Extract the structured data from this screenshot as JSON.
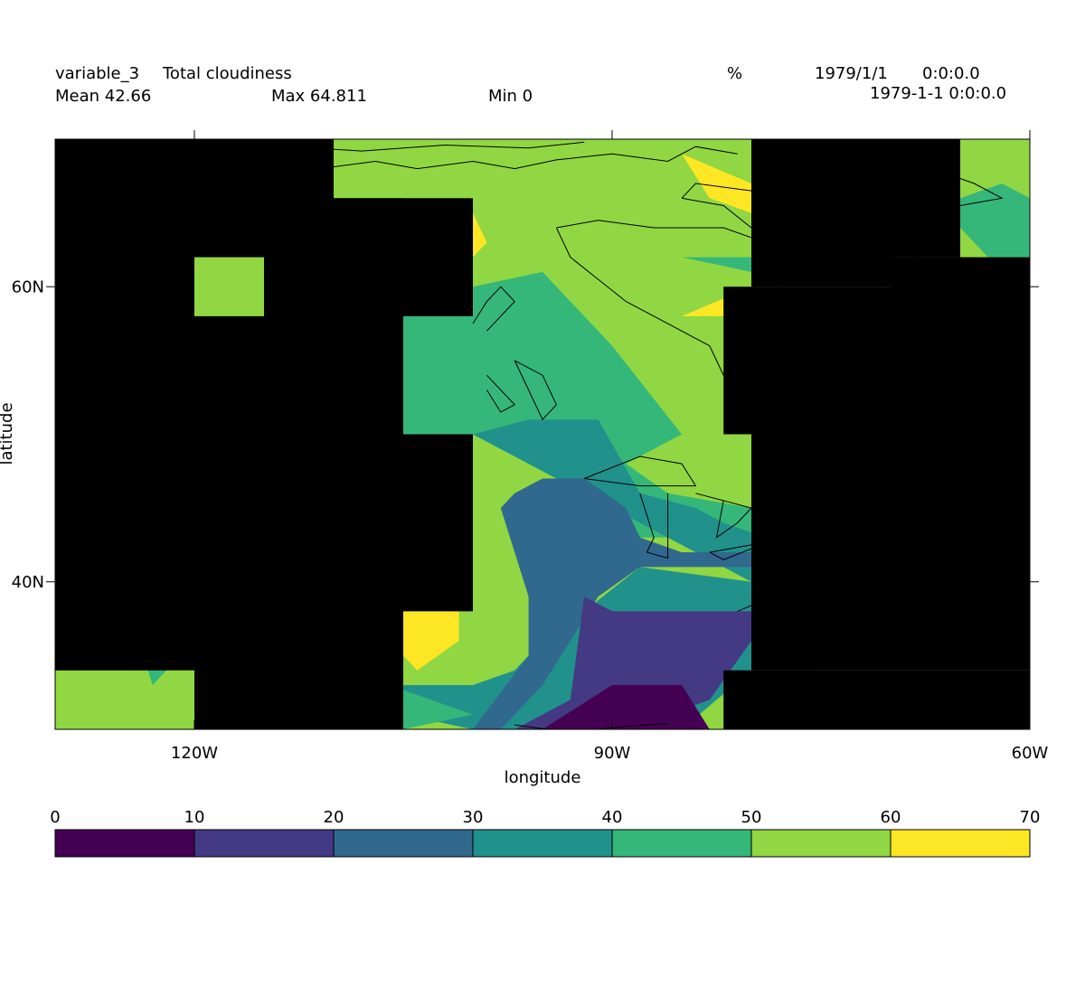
{
  "header": {
    "variable": "variable_3",
    "long_name": "Total cloudiness",
    "units": "%",
    "date": "1979/1/1",
    "time": "0:0:0.0",
    "timestamp": "1979-1-1 0:0:0.0",
    "mean": "Mean 42.66",
    "max": "Max 64.811",
    "min": "Min 0"
  },
  "chart_data": {
    "type": "heatmap",
    "title": "Total cloudiness",
    "xlabel": "longitude",
    "ylabel": "latitude",
    "xlim": [
      -130,
      -60
    ],
    "ylim": [
      30,
      70
    ],
    "x_ticks": [
      {
        "value": -120,
        "label": "120W"
      },
      {
        "value": -90,
        "label": "90W"
      },
      {
        "value": -60,
        "label": "60W"
      }
    ],
    "y_ticks": [
      {
        "value": 60,
        "label": "60N"
      },
      {
        "value": 40,
        "label": "40N"
      }
    ],
    "colorbar": {
      "levels": [
        0,
        10,
        20,
        30,
        40,
        50,
        60,
        70
      ],
      "level_labels": [
        "0",
        "10",
        "20",
        "30",
        "40",
        "50",
        "60",
        "70"
      ],
      "colors": [
        "#440154",
        "#443983",
        "#31688e",
        "#21918c",
        "#35b779",
        "#90d743",
        "#fde725"
      ]
    },
    "missing_color": "#000000",
    "stats": {
      "mean": 42.66,
      "max": 64.811,
      "min": 0
    },
    "bands": [
      {
        "bin": 5,
        "pts": [
          [
            -115,
            70
          ],
          [
            -90,
            70
          ],
          [
            -80,
            70
          ],
          [
            -80,
            65
          ],
          [
            -78,
            63
          ],
          [
            -80,
            60
          ],
          [
            -82,
            58
          ],
          [
            -85,
            53
          ],
          [
            -90,
            50
          ],
          [
            -85,
            46
          ],
          [
            -80,
            45
          ],
          [
            -75,
            46
          ],
          [
            -75,
            50
          ],
          [
            -80,
            50
          ],
          [
            -80,
            60
          ],
          [
            -75,
            60
          ],
          [
            -75,
            70
          ],
          [
            -85,
            70
          ],
          [
            -90,
            67
          ],
          [
            -95,
            70
          ],
          [
            -100,
            70
          ],
          [
            -100,
            66
          ],
          [
            -110,
            66
          ],
          [
            -115,
            66
          ]
        ]
      },
      {
        "bin": 4,
        "pts": [
          [
            -105,
            60
          ],
          [
            -100,
            60
          ],
          [
            -95,
            61
          ],
          [
            -90,
            56
          ],
          [
            -85,
            50
          ],
          [
            -87,
            49
          ],
          [
            -89,
            48
          ],
          [
            -86,
            46
          ],
          [
            -80,
            45
          ],
          [
            -75,
            45
          ],
          [
            -75,
            44
          ],
          [
            -80,
            43
          ],
          [
            -88,
            43
          ],
          [
            -92,
            46
          ],
          [
            -100,
            50
          ],
          [
            -105,
            50
          ]
        ]
      },
      {
        "bin": 3,
        "pts": [
          [
            -100,
            50
          ],
          [
            -96,
            51
          ],
          [
            -91,
            51
          ],
          [
            -88,
            46
          ],
          [
            -84,
            45
          ],
          [
            -82,
            44
          ],
          [
            -79,
            43
          ],
          [
            -75,
            43
          ],
          [
            -75,
            42
          ],
          [
            -80,
            42
          ],
          [
            -80,
            40
          ],
          [
            -88,
            41
          ],
          [
            -92,
            38
          ],
          [
            -95,
            36
          ],
          [
            -97,
            34
          ],
          [
            -100,
            33
          ],
          [
            -105,
            33
          ],
          [
            -105,
            31
          ],
          [
            -100,
            30
          ],
          [
            -85,
            30
          ],
          [
            -80,
            34
          ],
          [
            -80,
            40
          ],
          [
            -100,
            50
          ]
        ]
      },
      {
        "bin": 2,
        "pts": [
          [
            -97,
            46
          ],
          [
            -95,
            47
          ],
          [
            -92,
            47
          ],
          [
            -89,
            45
          ],
          [
            -88,
            43
          ],
          [
            -85,
            42
          ],
          [
            -80,
            42
          ],
          [
            -75,
            42
          ],
          [
            -80,
            41
          ],
          [
            -88,
            41
          ],
          [
            -91,
            39
          ],
          [
            -95,
            33
          ],
          [
            -98,
            30
          ],
          [
            -103,
            30
          ],
          [
            -105,
            30
          ],
          [
            -100,
            30
          ],
          [
            -96,
            35
          ],
          [
            -96,
            39
          ],
          [
            -98,
            45
          ]
        ]
      },
      {
        "bin": 1,
        "pts": [
          [
            -92,
            39
          ],
          [
            -90,
            38
          ],
          [
            -80,
            38
          ],
          [
            -80,
            36
          ],
          [
            -83,
            32
          ],
          [
            -86,
            31
          ],
          [
            -89,
            30
          ],
          [
            -97,
            30
          ],
          [
            -95,
            31
          ],
          [
            -93,
            32
          ]
        ]
      },
      {
        "bin": 0,
        "pts": [
          [
            -95,
            30
          ],
          [
            -90,
            33
          ],
          [
            -85,
            33
          ],
          [
            -83,
            30
          ]
        ]
      },
      {
        "bin": 6,
        "pts": [
          [
            -85,
            69
          ],
          [
            -80,
            67
          ],
          [
            -80,
            65
          ],
          [
            -83,
            66
          ]
        ]
      },
      {
        "bin": 6,
        "pts": [
          [
            -105,
            38
          ],
          [
            -101,
            38
          ],
          [
            -101,
            36
          ],
          [
            -104,
            34
          ],
          [
            -105,
            35
          ]
        ]
      },
      {
        "bin": 6,
        "pts": [
          [
            -100,
            65
          ],
          [
            -100,
            62
          ],
          [
            -99,
            63
          ]
        ]
      },
      {
        "bin": 6,
        "pts": [
          [
            -130,
            34
          ],
          [
            -128,
            30
          ],
          [
            -130,
            30
          ]
        ]
      },
      {
        "bin": 6,
        "pts": [
          [
            -115,
            62
          ],
          [
            -113,
            62
          ],
          [
            -113,
            61
          ]
        ]
      },
      {
        "bin": 6,
        "pts": [
          [
            -120,
            38
          ],
          [
            -118,
            38
          ],
          [
            -118,
            37
          ]
        ]
      },
      {
        "bin": 6,
        "pts": [
          [
            -85,
            58
          ],
          [
            -80,
            60
          ],
          [
            -80,
            58
          ]
        ]
      },
      {
        "bin": 6,
        "pts": [
          [
            -76,
            50
          ],
          [
            -75,
            50
          ],
          [
            -75,
            49
          ]
        ]
      },
      {
        "bin": 6,
        "pts": [
          [
            -70,
            67
          ],
          [
            -65,
            67
          ],
          [
            -65,
            69
          ],
          [
            -68,
            68
          ]
        ]
      },
      {
        "bin": 6,
        "pts": [
          [
            -65,
            64
          ],
          [
            -64,
            64
          ],
          [
            -65,
            65
          ]
        ]
      },
      {
        "bin": 5,
        "pts": [
          [
            -120,
            62
          ],
          [
            -115,
            62
          ],
          [
            -115,
            58
          ],
          [
            -120,
            58
          ]
        ]
      },
      {
        "bin": 5,
        "pts": [
          [
            -125,
            38
          ],
          [
            -120,
            38
          ],
          [
            -120,
            34
          ],
          [
            -130,
            34
          ],
          [
            -130,
            30
          ],
          [
            -125,
            30
          ]
        ]
      },
      {
        "bin": 5,
        "pts": [
          [
            -70,
            70
          ],
          [
            -60,
            70
          ],
          [
            -60,
            62
          ],
          [
            -65,
            62
          ],
          [
            -65,
            67
          ],
          [
            -70,
            67
          ]
        ]
      },
      {
        "bin": 4,
        "pts": [
          [
            -124,
            36
          ],
          [
            -120,
            36
          ],
          [
            -123,
            33
          ]
        ]
      },
      {
        "bin": 4,
        "pts": [
          [
            -65,
            66
          ],
          [
            -62,
            67
          ],
          [
            -60,
            66
          ],
          [
            -60,
            62
          ],
          [
            -63,
            62
          ],
          [
            -65,
            64
          ]
        ]
      },
      {
        "bin": 4,
        "pts": [
          [
            -85,
            62
          ],
          [
            -80,
            62
          ],
          [
            -80,
            61
          ]
        ]
      },
      {
        "bin": 4,
        "pts": [
          [
            -80,
            34
          ],
          [
            -75,
            36
          ],
          [
            -75,
            34
          ]
        ]
      },
      {
        "bin": 4,
        "pts": [
          [
            -106,
            33
          ],
          [
            -103,
            32
          ],
          [
            -100,
            31
          ],
          [
            -105,
            30
          ]
        ]
      }
    ],
    "missing_cells": [
      [
        -130,
        -115,
        62,
        70
      ],
      [
        -130,
        -120,
        34,
        70
      ],
      [
        -130,
        -122,
        34,
        38
      ],
      [
        -115,
        -110,
        58,
        70
      ],
      [
        -115,
        -105,
        50,
        66
      ],
      [
        -120,
        -105,
        30,
        58
      ],
      [
        -110,
        -100,
        58,
        66
      ],
      [
        -110,
        -100,
        38,
        50
      ],
      [
        -80,
        -70,
        60,
        70
      ],
      [
        -82,
        -70,
        50,
        60
      ],
      [
        -80,
        -60,
        38,
        50
      ],
      [
        -75,
        -60,
        42,
        50
      ],
      [
        -80,
        -60,
        30,
        34
      ],
      [
        -80,
        -60,
        34,
        42
      ],
      [
        -75,
        -65,
        62,
        66
      ],
      [
        -82,
        -80,
        30,
        34
      ],
      [
        -70,
        -60,
        50,
        62
      ],
      [
        -70,
        -65,
        62,
        70
      ]
    ],
    "coastlines": [
      [
        [
          -114,
          67
        ],
        [
          -111,
          68
        ],
        [
          -107,
          68.5
        ],
        [
          -104,
          68
        ],
        [
          -100,
          68.5
        ],
        [
          -97,
          68
        ],
        [
          -94,
          68.6
        ],
        [
          -90,
          69
        ],
        [
          -86,
          68.5
        ],
        [
          -84,
          69.5
        ],
        [
          -81,
          69
        ]
      ],
      [
        [
          -113,
          69.5
        ],
        [
          -108,
          69.2
        ],
        [
          -102,
          69.6
        ],
        [
          -96,
          69.4
        ],
        [
          -92,
          69.8
        ]
      ],
      [
        [
          -94,
          64
        ],
        [
          -93,
          62
        ],
        [
          -91,
          60.5
        ],
        [
          -89,
          59
        ],
        [
          -86,
          57.5
        ],
        [
          -83,
          56
        ],
        [
          -82,
          54
        ],
        [
          -80,
          52
        ],
        [
          -79,
          54
        ],
        [
          -77,
          56
        ],
        [
          -76,
          58
        ],
        [
          -78,
          60
        ],
        [
          -77,
          62
        ],
        [
          -79,
          63
        ],
        [
          -82,
          64
        ],
        [
          -87,
          64
        ],
        [
          -91,
          64.5
        ],
        [
          -94,
          64
        ]
      ],
      [
        [
          -85,
          66
        ],
        [
          -82,
          65.5
        ],
        [
          -80,
          64
        ],
        [
          -78,
          65
        ],
        [
          -80,
          66.5
        ],
        [
          -84,
          67
        ],
        [
          -85,
          66
        ]
      ],
      [
        [
          -78,
          63
        ],
        [
          -73,
          62
        ],
        [
          -70,
          61.5
        ],
        [
          -68,
          62
        ]
      ],
      [
        [
          -70,
          70
        ],
        [
          -67,
          68
        ],
        [
          -64,
          67
        ],
        [
          -62,
          66
        ],
        [
          -65,
          65.5
        ]
      ],
      [
        [
          -99,
          57
        ],
        [
          -98,
          58
        ],
        [
          -97,
          59
        ],
        [
          -98,
          60
        ],
        [
          -99,
          59
        ],
        [
          -100,
          57.5
        ]
      ],
      [
        [
          -97,
          55
        ],
        [
          -95,
          54
        ],
        [
          -94,
          52
        ],
        [
          -95,
          51
        ],
        [
          -96,
          53
        ],
        [
          -97,
          55
        ]
      ],
      [
        [
          -99,
          54
        ],
        [
          -98,
          53
        ],
        [
          -97,
          52
        ],
        [
          -98,
          51.5
        ],
        [
          -99,
          53
        ]
      ],
      [
        [
          -92,
          47
        ],
        [
          -88,
          48.5
        ],
        [
          -85,
          48
        ],
        [
          -84,
          46.5
        ],
        [
          -88,
          46.5
        ],
        [
          -92,
          47
        ]
      ],
      [
        [
          -88,
          46
        ],
        [
          -87,
          43
        ],
        [
          -87.5,
          42
        ],
        [
          -86,
          41.6
        ],
        [
          -86,
          44
        ],
        [
          -86,
          46
        ]
      ],
      [
        [
          -84,
          46
        ],
        [
          -82,
          45.5
        ],
        [
          -82.5,
          43
        ],
        [
          -81,
          44
        ],
        [
          -80,
          45
        ],
        [
          -84,
          46
        ]
      ],
      [
        [
          -83,
          42
        ],
        [
          -80,
          42.5
        ],
        [
          -78.5,
          42.8
        ],
        [
          -82,
          41.5
        ],
        [
          -83,
          42
        ]
      ],
      [
        [
          -79.5,
          43.5
        ],
        [
          -77,
          43.8
        ],
        [
          -76,
          44
        ],
        [
          -79,
          43.2
        ]
      ],
      [
        [
          -81,
          38
        ],
        [
          -76,
          40
        ],
        [
          -74,
          41
        ],
        [
          -71,
          42
        ],
        [
          -70,
          44
        ],
        [
          -66,
          45
        ],
        [
          -64,
          46
        ],
        [
          -61,
          47
        ]
      ],
      [
        [
          -124,
          37.5
        ],
        [
          -123,
          36
        ],
        [
          -122,
          34.5
        ]
      ],
      [
        [
          -97,
          30.3
        ],
        [
          -93,
          29.8
        ],
        [
          -89,
          30.2
        ],
        [
          -86,
          30.4
        ]
      ]
    ]
  }
}
